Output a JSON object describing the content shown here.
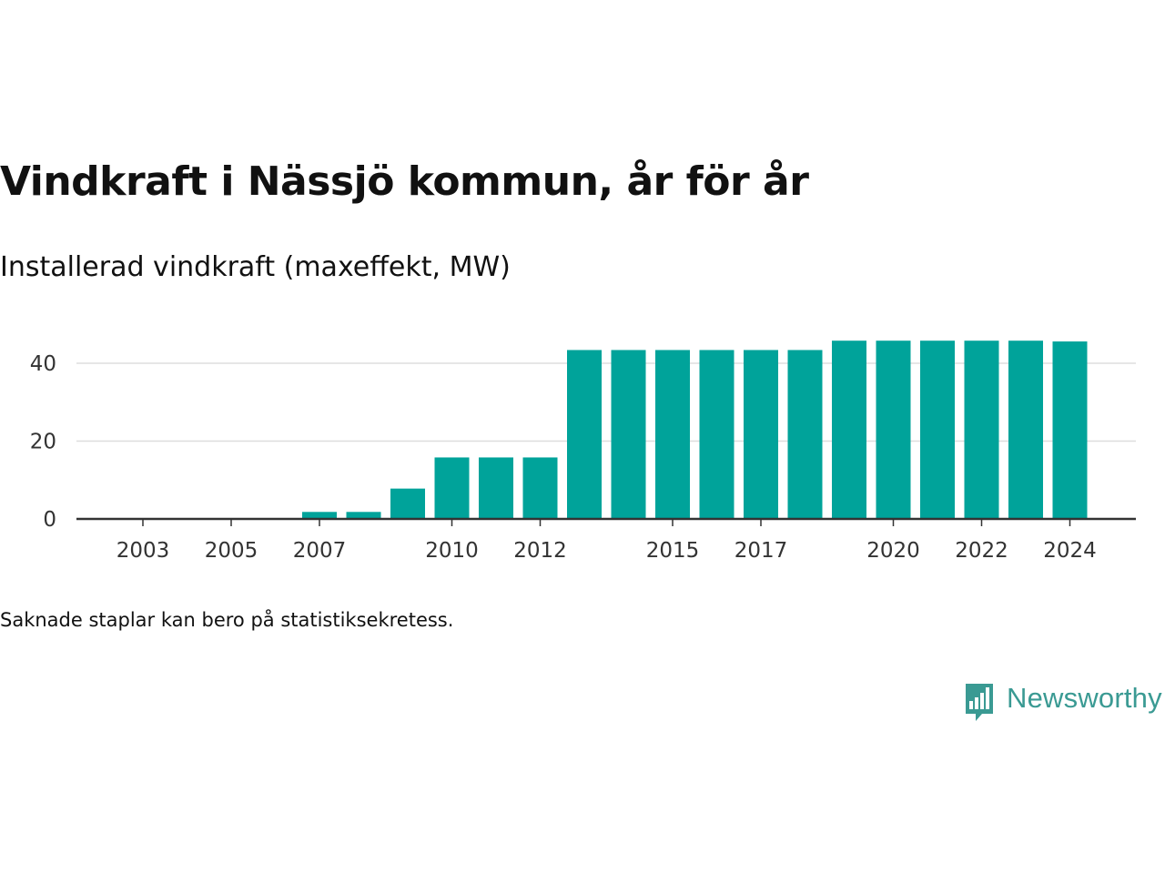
{
  "colors": {
    "bar": "#00a39a",
    "axis": "#333333",
    "grid": "#dddddd",
    "brand": "#3a9a93"
  },
  "chart_data": {
    "type": "bar",
    "title": "Vindkraft i Nässjö kommun, år för år",
    "subtitle": "Installerad vindkraft (maxeffekt, MW)",
    "categories": [
      "2002",
      "2003",
      "2004",
      "2005",
      "2006",
      "2007",
      "2008",
      "2009",
      "2010",
      "2011",
      "2012",
      "2013",
      "2014",
      "2015",
      "2016",
      "2017",
      "2018",
      "2019",
      "2020",
      "2021",
      "2022",
      "2023",
      "2024"
    ],
    "values": [
      0,
      0,
      0,
      0,
      0,
      1.8,
      1.8,
      7.8,
      15.8,
      15.8,
      15.8,
      43.4,
      43.4,
      43.4,
      43.4,
      43.4,
      43.4,
      45.8,
      45.8,
      45.8,
      45.8,
      45.8,
      45.6
    ],
    "x_tick_labels": [
      "2003",
      "2005",
      "2007",
      "2010",
      "2012",
      "2015",
      "2017",
      "2020",
      "2022",
      "2024"
    ],
    "y_ticks": [
      0,
      20,
      40
    ],
    "ylim": [
      0,
      50
    ],
    "grid": true,
    "xlabel": "",
    "ylabel": ""
  },
  "footnote": "Saknade staplar kan bero på statistiksekretess.",
  "logo": {
    "text": "Newsworthy",
    "icon": "bar-chart-speech-bubble-icon"
  }
}
